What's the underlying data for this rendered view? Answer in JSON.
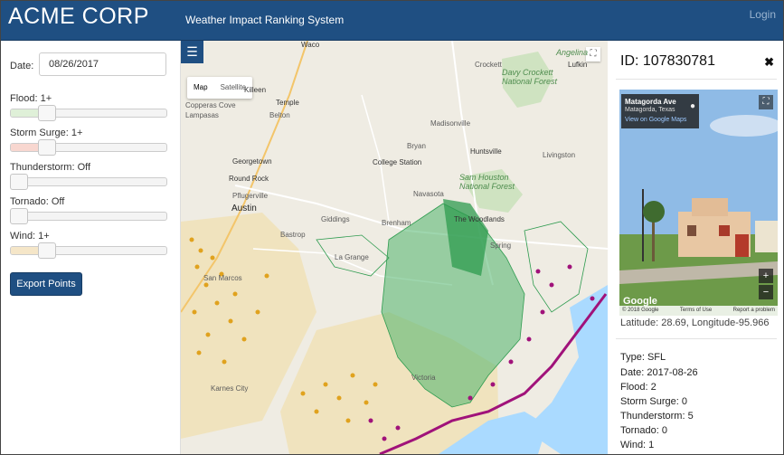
{
  "app": {
    "brand": "ACME CORP",
    "subtitle": "Weather Impact Ranking System",
    "login": "Login"
  },
  "sidebar": {
    "date_label": "Date:",
    "date_value": "08/26/2017",
    "sliders": [
      {
        "label": "Flood: 1+",
        "level_fraction": 0.2,
        "fill_color": "#dff0d8"
      },
      {
        "label": "Storm Surge: 1+",
        "level_fraction": 0.2,
        "fill_color": "#f8d7d0"
      },
      {
        "label": "Thunderstorm: Off",
        "level_fraction": 0.0,
        "fill_color": ""
      },
      {
        "label": "Tornado: Off",
        "level_fraction": 0.0,
        "fill_color": ""
      },
      {
        "label": "Wind: 1+",
        "level_fraction": 0.2,
        "fill_color": "#f5e6c8"
      }
    ],
    "export_label": "Export Points"
  },
  "map": {
    "menu_icon": "hamburger-icon",
    "map_types": [
      "Map",
      "Satellite"
    ],
    "fullscreen_icon": "fullscreen-icon",
    "labels": {
      "waco": "Waco",
      "killeen": "Killeen",
      "temple": "Temple",
      "lampasas": "Lampasas",
      "copperas_cove": "Copperas Cove",
      "belton": "Belton",
      "georgetown": "Georgetown",
      "round_rock": "Round Rock",
      "pflugerville": "Pflugerville",
      "austin": "Austin",
      "san_marcos": "San Marcos",
      "college_station": "College Station",
      "bryan": "Bryan",
      "huntsville": "Huntsville",
      "madisonville": "Madisonville",
      "crockett": "Crockett",
      "lufkin": "Lufkin",
      "angelina": "Angelina",
      "davy_crockett_forest": "Davy Crockett National Forest",
      "sam_houston_forest": "Sam Houston National Forest",
      "livingston": "Livingston",
      "the_woodlands": "The Woodlands",
      "navasota": "Navasota",
      "brenham": "Brenham",
      "giddings": "Giddings",
      "bastrop": "Bastrop",
      "la_grange": "La Grange",
      "spring": "Spring",
      "karnes_city": "Karnes City",
      "victoria": "Victoria"
    }
  },
  "panel": {
    "title": "ID: 107830781",
    "close_icon": "close-icon",
    "street_view": {
      "name": "Matagorda Ave",
      "location": "Matagorda, Texas",
      "link": "View on Google Maps",
      "copyright": "© 2018 Google",
      "terms": "Terms of Use",
      "report": "Report a problem",
      "logo": "Google"
    },
    "latlon": "Latitude: 28.69, Longitude-95.966",
    "attributes": [
      "Type: SFL",
      "Date: 2017-08-26",
      "Flood: 2",
      "Storm Surge: 0",
      "Thunderstorm: 5",
      "Tornado: 0",
      "Wind: 1"
    ]
  },
  "colors": {
    "navbar": "#1f4f82",
    "flood": "#2e9b4f",
    "surge": "#a0127a",
    "wind": "#e0a21e"
  }
}
